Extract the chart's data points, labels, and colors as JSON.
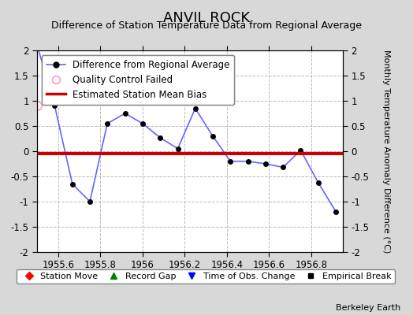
{
  "title": "ANVIL ROCK",
  "subtitle": "Difference of Station Temperature Data from Regional Average",
  "ylabel_right": "Monthly Temperature Anomaly Difference (°C)",
  "credit": "Berkeley Earth",
  "xlim": [
    1955.5,
    1956.95
  ],
  "ylim": [
    -2,
    2
  ],
  "xticks": [
    1955.6,
    1955.8,
    1956.0,
    1956.2,
    1956.4,
    1956.6,
    1956.8
  ],
  "yticks": [
    -2,
    -1.5,
    -1,
    -0.5,
    0,
    0.5,
    1,
    1.5,
    2
  ],
  "bias_line_y": -0.05,
  "x_data": [
    1955.5,
    1955.583,
    1955.667,
    1955.75,
    1955.833,
    1955.917,
    1956.0,
    1956.083,
    1956.167,
    1956.25,
    1956.333,
    1956.417,
    1956.5,
    1956.583,
    1956.667,
    1956.75,
    1956.833,
    1956.917
  ],
  "y_data": [
    2.1,
    0.9,
    -0.65,
    -1.0,
    0.55,
    0.75,
    0.55,
    0.27,
    0.05,
    0.85,
    0.3,
    -0.2,
    -0.2,
    -0.25,
    -0.32,
    0.02,
    -0.62,
    -1.2
  ],
  "qc_x": [
    1955.5
  ],
  "qc_y": [
    0.9
  ],
  "line_color": "#6666ff",
  "marker_color": "#000000",
  "qc_color": "#ffaacc",
  "bias_color": "#cc0000",
  "background_color": "#d8d8d8",
  "plot_background": "#ffffff",
  "grid_color": "#bbbbbb",
  "title_fontsize": 13,
  "subtitle_fontsize": 9,
  "legend_fontsize": 8.5
}
